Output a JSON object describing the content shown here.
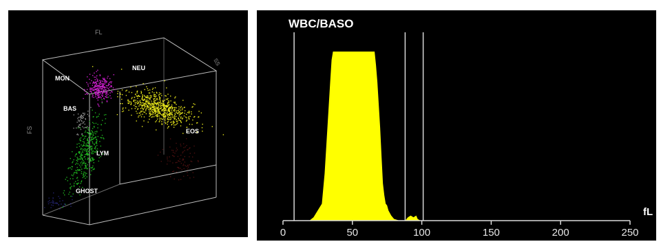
{
  "scatter": {
    "axis_labels": {
      "top": "FL",
      "side": "FS",
      "right": "SS"
    },
    "clusters": [
      {
        "label": "MON",
        "color": "#d21fd2"
      },
      {
        "label": "NEU",
        "color": "#e8e61b"
      },
      {
        "label": "BAS",
        "color": "#c8c8c8"
      },
      {
        "label": "LYM",
        "color": "#1fb41f"
      },
      {
        "label": "EOS",
        "color": "#8a1e1e"
      },
      {
        "label": "GHOST",
        "color": "#3a3ab0"
      }
    ]
  },
  "chart_data": {
    "type": "area",
    "title": "WBC/BASO",
    "xlabel": "fL",
    "ylabel": "",
    "xlim": [
      0,
      250
    ],
    "ylim": [
      0,
      100
    ],
    "x_ticks": [
      0,
      50,
      100,
      150,
      200,
      250
    ],
    "x_tick_labels": [
      "0",
      "50",
      "100",
      "150",
      "200",
      "250"
    ],
    "discriminator_lines": [
      8,
      88,
      101
    ],
    "fill_color": "#ffff00",
    "series": [
      {
        "x": [
          19,
          22,
          25,
          28,
          30,
          32,
          34,
          35,
          36,
          66,
          67,
          68,
          70,
          71,
          72,
          73,
          74,
          75,
          76,
          78,
          80,
          84,
          86,
          88,
          90,
          92,
          94,
          96,
          97,
          99,
          101,
          104
        ],
        "values": [
          0,
          2,
          6,
          10,
          28,
          55,
          82,
          95,
          100,
          100,
          92,
          82,
          55,
          38,
          22,
          15,
          10,
          9,
          6,
          3,
          1,
          0,
          0,
          0,
          2,
          3,
          2,
          3,
          1,
          0,
          0,
          0
        ]
      }
    ]
  }
}
